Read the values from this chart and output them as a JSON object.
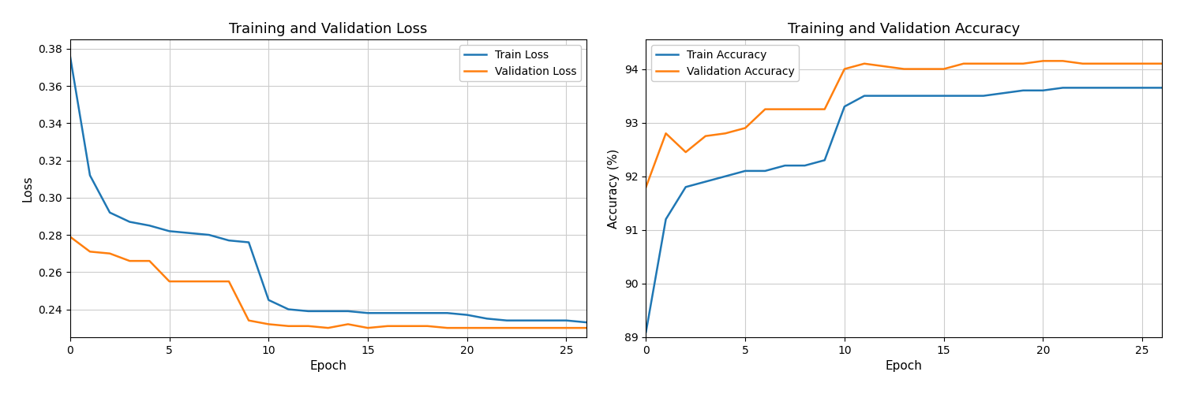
{
  "train_loss": [
    0.376,
    0.312,
    0.292,
    0.287,
    0.285,
    0.282,
    0.281,
    0.28,
    0.277,
    0.276,
    0.245,
    0.24,
    0.239,
    0.239,
    0.239,
    0.238,
    0.238,
    0.238,
    0.238,
    0.238,
    0.237,
    0.235,
    0.234,
    0.234,
    0.234,
    0.234,
    0.233
  ],
  "val_loss": [
    0.279,
    0.271,
    0.27,
    0.266,
    0.266,
    0.255,
    0.255,
    0.255,
    0.255,
    0.234,
    0.232,
    0.231,
    0.231,
    0.23,
    0.232,
    0.23,
    0.231,
    0.231,
    0.231,
    0.23,
    0.23,
    0.23,
    0.23,
    0.23,
    0.23,
    0.23,
    0.23
  ],
  "train_acc": [
    89.1,
    91.2,
    91.8,
    91.9,
    92.0,
    92.1,
    92.1,
    92.2,
    92.2,
    92.3,
    93.3,
    93.5,
    93.5,
    93.5,
    93.5,
    93.5,
    93.5,
    93.5,
    93.55,
    93.6,
    93.6,
    93.65,
    93.65,
    93.65,
    93.65,
    93.65,
    93.65
  ],
  "val_acc": [
    91.8,
    92.8,
    92.45,
    92.75,
    92.8,
    92.9,
    93.25,
    93.25,
    93.25,
    93.25,
    94.0,
    94.1,
    94.05,
    94.0,
    94.0,
    94.0,
    94.1,
    94.1,
    94.1,
    94.1,
    94.15,
    94.15,
    94.1,
    94.1,
    94.1,
    94.1,
    94.1
  ],
  "epochs": [
    0,
    1,
    2,
    3,
    4,
    5,
    6,
    7,
    8,
    9,
    10,
    11,
    12,
    13,
    14,
    15,
    16,
    17,
    18,
    19,
    20,
    21,
    22,
    23,
    24,
    25,
    26
  ],
  "loss_title": "Training and Validation Loss",
  "acc_title": "Training and Validation Accuracy",
  "xlabel": "Epoch",
  "loss_ylabel": "Loss",
  "acc_ylabel": "Accuracy (%)",
  "train_loss_label": "Train Loss",
  "val_loss_label": "Validation Loss",
  "train_acc_label": "Train Accuracy",
  "val_acc_label": "Validation Accuracy",
  "train_color": "#1f77b4",
  "val_color": "#ff7f0e",
  "loss_ylim": [
    0.225,
    0.385
  ],
  "acc_ylim": [
    89.0,
    94.55
  ],
  "loss_yticks": [
    0.24,
    0.26,
    0.28,
    0.3,
    0.32,
    0.34,
    0.36,
    0.38
  ],
  "acc_yticks": [
    89,
    90,
    91,
    92,
    93,
    94
  ],
  "xticks": [
    0,
    5,
    10,
    15,
    20,
    25
  ],
  "figsize": [
    15.0,
    5.0
  ],
  "dpi": 100,
  "fig_bg_color": "#ffffff",
  "axes_bg_color": "#ffffff",
  "grid_color": "#cccccc",
  "linewidth": 1.8,
  "loss_legend_loc": "upper right",
  "acc_legend_loc": "upper left"
}
